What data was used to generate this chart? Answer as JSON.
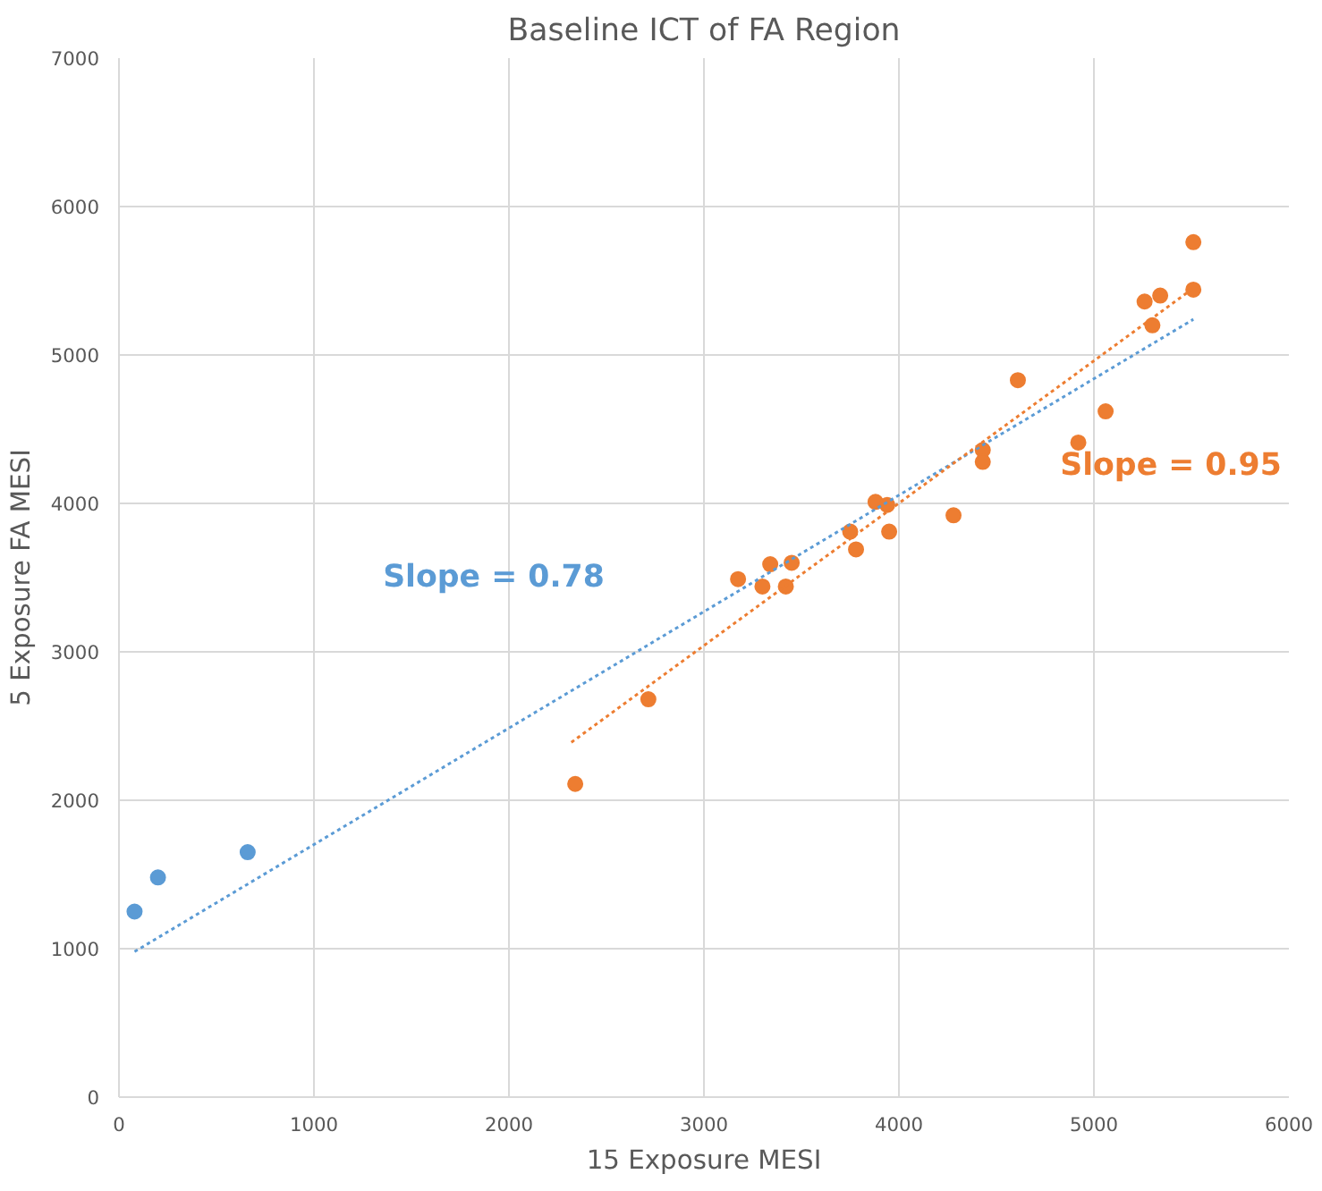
{
  "chart_data": {
    "type": "scatter",
    "title": "Baseline ICT of FA Region",
    "xlabel": "15 Exposure MESI",
    "ylabel": "5 Exposure FA MESI",
    "xlim": [
      0,
      6000
    ],
    "xticks": [
      0,
      1000,
      2000,
      3000,
      4000,
      5000,
      6000
    ],
    "ylim": [
      0,
      7000
    ],
    "yticks": [
      0,
      1000,
      2000,
      3000,
      4000,
      5000,
      6000,
      7000
    ],
    "grid": true,
    "marker": "circle",
    "series": [
      {
        "color": "#5b9bd5",
        "x": [
          80,
          200,
          660
        ],
        "values": [
          1250,
          1480,
          1650
        ]
      },
      {
        "color": "#ed7d31",
        "x": [
          2340,
          2715,
          3175,
          3300,
          3340,
          3420,
          3450,
          3750,
          3780,
          3880,
          3940,
          3950,
          4280,
          4430,
          4430,
          4610,
          4920,
          5060,
          5260,
          5300,
          5340,
          5510,
          5510
        ],
        "values": [
          2110,
          2680,
          3490,
          3440,
          3590,
          3440,
          3600,
          3810,
          3690,
          4010,
          3990,
          3810,
          3920,
          4360,
          4280,
          4830,
          4410,
          4620,
          5360,
          5200,
          5400,
          5440,
          5760
        ]
      },
      {
        "type": "line",
        "color": "#5b9bd5",
        "line_style": "dotted",
        "marker": "none",
        "x": [
          80,
          5510
        ],
        "values": [
          980,
          5240
        ]
      },
      {
        "type": "line",
        "color": "#ed7d31",
        "line_style": "dotted",
        "marker": "none",
        "x": [
          2320,
          5510
        ],
        "values": [
          2390,
          5450
        ]
      }
    ],
    "annotations": [
      "Slope = 0.78",
      "Slope = 0.95"
    ]
  }
}
